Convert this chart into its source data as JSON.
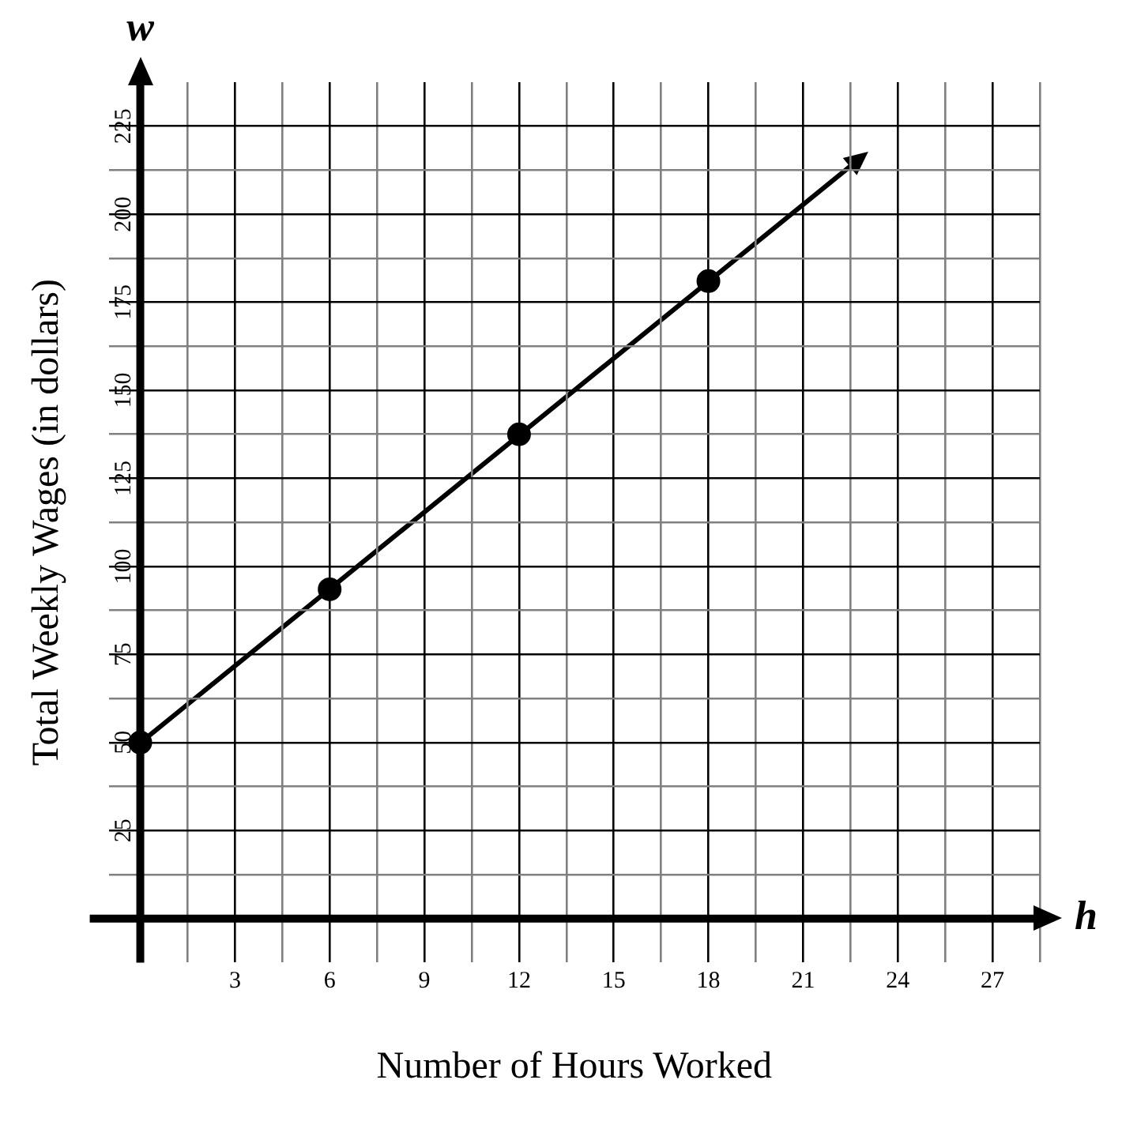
{
  "chart_data": {
    "type": "scatter",
    "xlabel": "Number of Hours Worked",
    "ylabel": "Total Weekly Wages (in dollars)",
    "annotations": [
      "w",
      "h"
    ],
    "series": [
      {
        "color": "#000000",
        "marker": "circle",
        "x": [
          0,
          6,
          12,
          18
        ],
        "values": [
          50,
          93.5,
          137.5,
          181
        ]
      }
    ],
    "xlim": [
      -1,
      28.5
    ],
    "xticks": [
      {
        "value": 0,
        "label": null
      },
      {
        "value": 1.5,
        "label": null
      },
      3,
      {
        "value": 4.5,
        "label": null
      },
      6,
      {
        "value": 7.5,
        "label": null
      },
      9,
      {
        "value": 10.5,
        "label": null
      },
      12,
      {
        "value": 13.5,
        "label": null
      },
      15,
      {
        "value": 16.5,
        "label": null
      },
      18,
      {
        "value": 19.5,
        "label": null
      },
      21,
      {
        "value": 22.5,
        "label": null
      },
      24,
      {
        "value": 25.5,
        "label": null
      },
      27,
      {
        "value": 28.5,
        "label": null
      }
    ],
    "ylim": [
      -12.5,
      237.5
    ],
    "yticks": [
      {
        "value": 0,
        "label": null
      },
      {
        "value": 12.5,
        "label": null
      },
      25,
      {
        "value": 37.5,
        "label": null
      },
      50,
      {
        "value": 62.5,
        "label": null
      },
      75,
      {
        "value": 87.5,
        "label": null
      },
      100,
      {
        "value": 112.5,
        "label": null
      },
      125,
      {
        "value": 137.5,
        "label": null
      },
      150,
      {
        "value": 162.5,
        "label": null
      },
      175,
      {
        "value": 187.5,
        "label": null
      },
      200,
      {
        "value": 212.5,
        "label": null
      },
      225
    ],
    "grid": true
  }
}
